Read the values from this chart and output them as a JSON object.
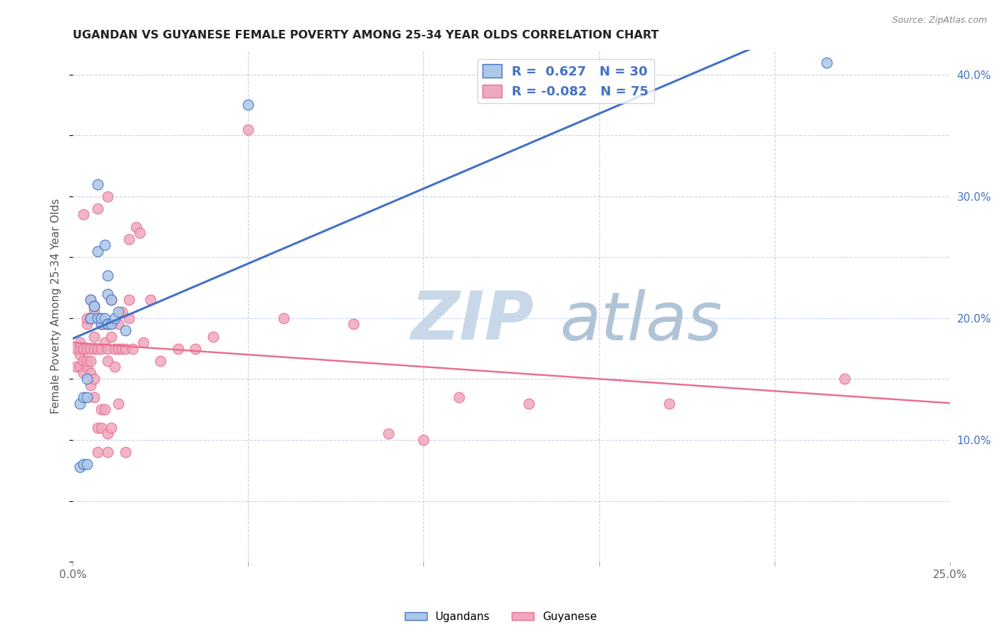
{
  "title": "UGANDAN VS GUYANESE FEMALE POVERTY AMONG 25-34 YEAR OLDS CORRELATION CHART",
  "source": "Source: ZipAtlas.com",
  "ylabel": "Female Poverty Among 25-34 Year Olds",
  "xlim": [
    0.0,
    0.25
  ],
  "ylim": [
    0.0,
    0.42
  ],
  "x_ticks": [
    0.0,
    0.05,
    0.1,
    0.15,
    0.2,
    0.25
  ],
  "x_tick_labels": [
    "0.0%",
    "",
    "",
    "",
    "",
    "25.0%"
  ],
  "y_ticks_right": [
    0.1,
    0.2,
    0.3,
    0.4
  ],
  "y_tick_labels_right": [
    "10.0%",
    "20.0%",
    "30.0%",
    "40.0%"
  ],
  "ugandan_R": 0.627,
  "ugandan_N": 30,
  "guyanese_R": -0.082,
  "guyanese_N": 75,
  "ugandan_color": "#adc8e8",
  "guyanese_color": "#f0a8be",
  "ugandan_line_color": "#4472c4",
  "guyanese_line_color": "#e87090",
  "background_color": "#ffffff",
  "grid_color": "#c8d4e8",
  "watermark_zip_color": "#c8d8e8",
  "watermark_atlas_color": "#b0c4d8",
  "ugandan_x": [
    0.002,
    0.002,
    0.003,
    0.003,
    0.004,
    0.004,
    0.004,
    0.005,
    0.005,
    0.005,
    0.006,
    0.006,
    0.007,
    0.007,
    0.007,
    0.008,
    0.008,
    0.009,
    0.009,
    0.01,
    0.01,
    0.01,
    0.01,
    0.011,
    0.011,
    0.012,
    0.013,
    0.015,
    0.05,
    0.215
  ],
  "ugandan_y": [
    0.078,
    0.13,
    0.135,
    0.08,
    0.08,
    0.135,
    0.15,
    0.2,
    0.215,
    0.2,
    0.21,
    0.21,
    0.2,
    0.255,
    0.31,
    0.195,
    0.2,
    0.2,
    0.26,
    0.195,
    0.195,
    0.22,
    0.235,
    0.195,
    0.215,
    0.2,
    0.205,
    0.19,
    0.375,
    0.41
  ],
  "guyanese_x": [
    0.001,
    0.001,
    0.002,
    0.002,
    0.002,
    0.002,
    0.003,
    0.003,
    0.003,
    0.003,
    0.003,
    0.004,
    0.004,
    0.004,
    0.004,
    0.004,
    0.005,
    0.005,
    0.005,
    0.005,
    0.005,
    0.006,
    0.006,
    0.006,
    0.006,
    0.006,
    0.007,
    0.007,
    0.007,
    0.007,
    0.008,
    0.008,
    0.008,
    0.008,
    0.009,
    0.009,
    0.009,
    0.01,
    0.01,
    0.01,
    0.01,
    0.01,
    0.011,
    0.011,
    0.011,
    0.012,
    0.012,
    0.013,
    0.013,
    0.013,
    0.014,
    0.014,
    0.015,
    0.015,
    0.016,
    0.016,
    0.016,
    0.017,
    0.018,
    0.019,
    0.02,
    0.022,
    0.025,
    0.03,
    0.035,
    0.04,
    0.05,
    0.06,
    0.08,
    0.09,
    0.1,
    0.11,
    0.13,
    0.17,
    0.22
  ],
  "guyanese_y": [
    0.16,
    0.175,
    0.16,
    0.17,
    0.175,
    0.18,
    0.155,
    0.165,
    0.175,
    0.285,
    0.175,
    0.16,
    0.165,
    0.175,
    0.195,
    0.2,
    0.145,
    0.155,
    0.165,
    0.175,
    0.215,
    0.135,
    0.15,
    0.175,
    0.185,
    0.205,
    0.09,
    0.11,
    0.175,
    0.29,
    0.11,
    0.125,
    0.175,
    0.195,
    0.125,
    0.18,
    0.195,
    0.09,
    0.105,
    0.165,
    0.175,
    0.3,
    0.11,
    0.185,
    0.215,
    0.16,
    0.175,
    0.13,
    0.175,
    0.195,
    0.175,
    0.205,
    0.09,
    0.175,
    0.2,
    0.215,
    0.265,
    0.175,
    0.275,
    0.27,
    0.18,
    0.215,
    0.165,
    0.175,
    0.175,
    0.185,
    0.355,
    0.2,
    0.195,
    0.105,
    0.1,
    0.135,
    0.13,
    0.13,
    0.15
  ]
}
